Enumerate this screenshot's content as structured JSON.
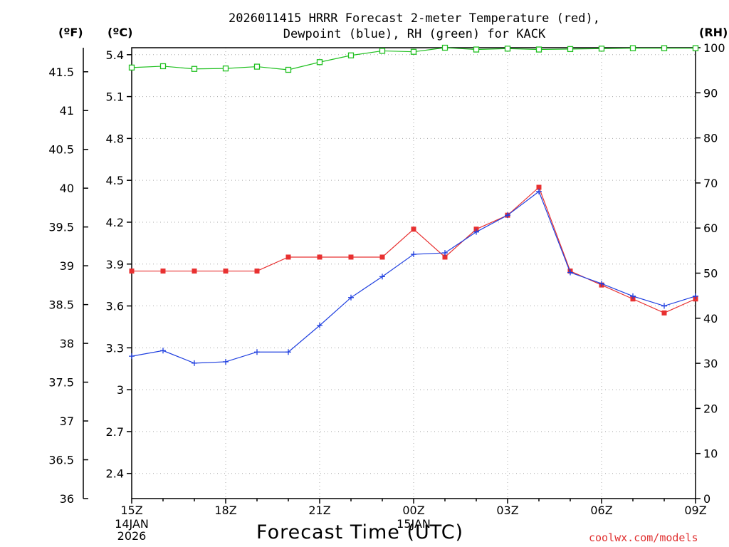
{
  "title_line1": "2026011415 HRRR Forecast 2-meter Temperature (red),",
  "title_line2": "Dewpoint (blue), RH (green) for KACK",
  "unit_f": "(ºF)",
  "unit_c": "(ºC)",
  "unit_rh": "(RH)",
  "xlabel": "Forecast Time (UTC)",
  "credit": "coolwx.com/models",
  "colors": {
    "temperature": "#e83030",
    "dewpoint": "#2040e0",
    "rh": "#20c020"
  },
  "chart_data": {
    "type": "line",
    "title": "2026011415 HRRR Forecast 2-meter Temperature (red), Dewpoint (blue), RH (green) for KACK",
    "xlabel": "Forecast Time (UTC)",
    "x": [
      "15Z",
      "16Z",
      "17Z",
      "18Z",
      "19Z",
      "20Z",
      "21Z",
      "22Z",
      "23Z",
      "00Z",
      "01Z",
      "02Z",
      "03Z",
      "04Z",
      "05Z",
      "06Z",
      "07Z",
      "08Z",
      "09Z"
    ],
    "x_ticks": [
      {
        "label": "15Z",
        "sub": [
          "14JAN",
          "2026"
        ]
      },
      {
        "label": "18Z",
        "sub": []
      },
      {
        "label": "21Z",
        "sub": []
      },
      {
        "label": "00Z",
        "sub": [
          "15JAN"
        ]
      },
      {
        "label": "03Z",
        "sub": []
      },
      {
        "label": "06Z",
        "sub": []
      },
      {
        "label": "09Z",
        "sub": []
      }
    ],
    "y_left_c": {
      "ticks": [
        "2.4",
        "2.7",
        "3",
        "3.3",
        "3.6",
        "3.9",
        "4.2",
        "4.5",
        "4.8",
        "5.1",
        "5.4"
      ],
      "ylim": [
        2.22,
        5.45
      ]
    },
    "y_left_f": {
      "ticks": [
        "36",
        "36.5",
        "37",
        "37.5",
        "38",
        "38.5",
        "39",
        "39.5",
        "40",
        "40.5",
        "41",
        "41.5"
      ],
      "ylim": [
        36,
        41.81
      ]
    },
    "y_right_rh": {
      "ticks": [
        "0",
        "10",
        "20",
        "30",
        "40",
        "50",
        "60",
        "70",
        "80",
        "90",
        "100"
      ],
      "ylim": [
        0,
        100
      ]
    },
    "grid": true,
    "series": [
      {
        "name": "Temperature",
        "axis": "c",
        "marker": "square",
        "values": [
          3.85,
          3.85,
          3.85,
          3.85,
          3.85,
          3.95,
          3.95,
          3.95,
          3.95,
          4.15,
          3.95,
          4.15,
          4.25,
          4.45,
          3.85,
          3.75,
          3.65,
          3.55,
          3.65
        ]
      },
      {
        "name": "Dewpoint",
        "axis": "c",
        "marker": "plus",
        "values": [
          3.24,
          3.28,
          3.19,
          3.2,
          3.27,
          3.27,
          3.46,
          3.66,
          3.81,
          3.97,
          3.98,
          4.13,
          4.25,
          4.42,
          3.84,
          3.76,
          3.67,
          3.6,
          3.67
        ]
      },
      {
        "name": "RH",
        "axis": "rh",
        "marker": "open-square",
        "values": [
          95.6,
          95.9,
          95.3,
          95.4,
          95.8,
          95.1,
          96.8,
          98.3,
          99.3,
          99.1,
          100,
          99.6,
          99.8,
          99.6,
          99.7,
          99.8,
          99.9,
          99.9,
          99.9
        ]
      }
    ]
  }
}
